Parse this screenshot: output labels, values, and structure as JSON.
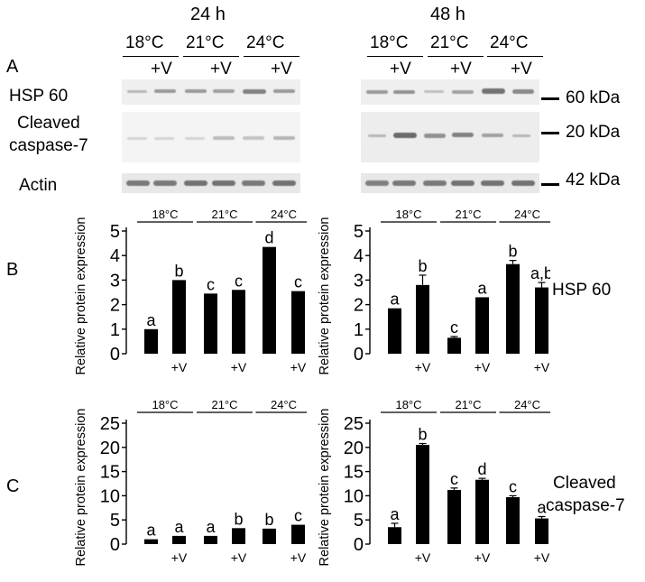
{
  "panel_labels": {
    "a": "A",
    "b": "B",
    "c": "C"
  },
  "blot": {
    "timepoints": [
      "24 h",
      "48 h"
    ],
    "temperatures": [
      "18°C",
      "21°C",
      "24°C"
    ],
    "treatment": "+V",
    "proteins": {
      "hsp": "HSP 60",
      "casp_1": "Cleaved",
      "casp_2": "caspase-7",
      "actin": "Actin"
    },
    "markers": {
      "hsp": "60 kDa",
      "casp": "20 kDa",
      "actin": "42 kDa"
    }
  },
  "row_labels": {
    "hsp": "HSP 60",
    "casp_1": "Cleaved",
    "casp_2": "caspase-7"
  },
  "chart_data": [
    {
      "id": "b24",
      "type": "bar",
      "ylabel": "Relative protein expression",
      "ylim": [
        0,
        5
      ],
      "yticks": [
        0,
        1,
        2,
        3,
        4,
        5
      ],
      "groups": [
        "18°C",
        "21°C",
        "24°C"
      ],
      "treatment_label": "+V",
      "values": [
        1.0,
        3.0,
        2.45,
        2.6,
        4.35,
        2.55
      ],
      "errors": [
        0.0,
        0.0,
        0.0,
        0.0,
        0.0,
        0.0
      ],
      "letters": [
        "a",
        "b",
        "c",
        "c",
        "d",
        "c"
      ]
    },
    {
      "id": "b48",
      "type": "bar",
      "ylabel": "Relative protein expression",
      "ylim": [
        0,
        5
      ],
      "yticks": [
        0,
        1,
        2,
        3,
        4,
        5
      ],
      "groups": [
        "18°C",
        "21°C",
        "24°C"
      ],
      "treatment_label": "+V",
      "values": [
        1.85,
        2.8,
        0.65,
        2.3,
        3.65,
        2.7
      ],
      "errors": [
        0.0,
        0.4,
        0.05,
        0.0,
        0.15,
        0.2
      ],
      "letters": [
        "a",
        "b",
        "c",
        "a",
        "b",
        "a,b"
      ]
    },
    {
      "id": "c24",
      "type": "bar",
      "ylabel": "Relative protein expression",
      "ylim": [
        0,
        25
      ],
      "yticks": [
        0,
        5,
        10,
        15,
        20,
        25
      ],
      "groups": [
        "18°C",
        "21°C",
        "24°C"
      ],
      "treatment_label": "+V",
      "values": [
        1.0,
        1.7,
        1.7,
        3.3,
        3.2,
        4.0
      ],
      "errors": [
        0.0,
        0.0,
        0.0,
        0.0,
        0.0,
        0.0
      ],
      "letters": [
        "a",
        "a",
        "a",
        "b",
        "b",
        "c"
      ]
    },
    {
      "id": "c48",
      "type": "bar",
      "ylabel": "Relative protein expression",
      "ylim": [
        0,
        25
      ],
      "yticks": [
        0,
        5,
        10,
        15,
        20,
        25
      ],
      "groups": [
        "18°C",
        "21°C",
        "24°C"
      ],
      "treatment_label": "+V",
      "values": [
        3.5,
        20.5,
        11.2,
        13.3,
        9.7,
        5.3
      ],
      "errors": [
        0.8,
        0.3,
        0.4,
        0.3,
        0.3,
        0.4
      ],
      "letters": [
        "a",
        "b",
        "c",
        "d",
        "c",
        "a"
      ]
    }
  ]
}
